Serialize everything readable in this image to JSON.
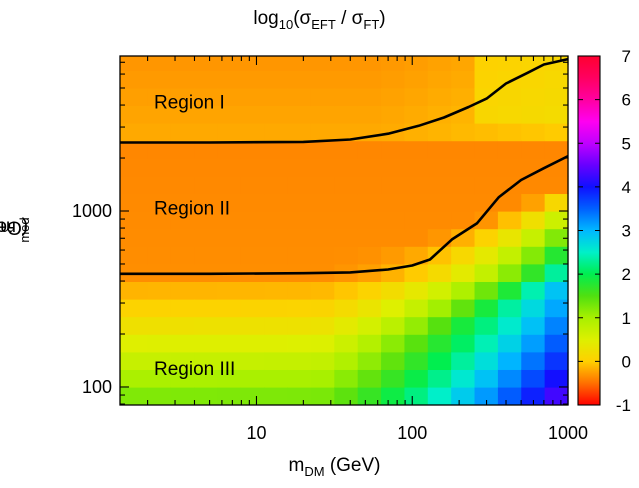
{
  "chart_data": {
    "type": "heatmap",
    "title": {
      "base": "log",
      "sub10": "10",
      "open": "(σ",
      "sub1": "EFT",
      "mid": " / σ",
      "sub2": "FT",
      "close": ")"
    },
    "xlabel": {
      "base": "m",
      "sub": "DM",
      "unit": " (GeV)"
    },
    "ylabel": {
      "base": "m",
      "sub": "med",
      "unit": "  (GeV)"
    },
    "x_scale": "log",
    "y_scale": "log",
    "xlim": [
      1.33,
      1000
    ],
    "ylim": [
      79,
      7600
    ],
    "x_ticks": [
      10,
      100,
      1000
    ],
    "x_tick_labels": [
      "10",
      "100",
      "1000"
    ],
    "y_ticks": [
      100,
      1000
    ],
    "y_tick_labels": [
      "100",
      "1000"
    ],
    "grid": false,
    "colorbar": {
      "range": [
        -1,
        7
      ],
      "ticks": [
        -1,
        0,
        1,
        2,
        3,
        4,
        5,
        6,
        7
      ],
      "tick_labels": [
        "-1",
        "0",
        "1",
        "2",
        "3",
        "4",
        "5",
        "6",
        "7"
      ],
      "stops": [
        {
          "v": -1,
          "color": "#ff0000"
        },
        {
          "v": -0.5,
          "color": "#ff7000"
        },
        {
          "v": 0,
          "color": "#ffd000"
        },
        {
          "v": 0.5,
          "color": "#ddf000"
        },
        {
          "v": 1,
          "color": "#a8f000"
        },
        {
          "v": 1.5,
          "color": "#50e010"
        },
        {
          "v": 2,
          "color": "#00ee50"
        },
        {
          "v": 2.5,
          "color": "#00f0c8"
        },
        {
          "v": 3,
          "color": "#00b8ff"
        },
        {
          "v": 3.5,
          "color": "#0060ff"
        },
        {
          "v": 4,
          "color": "#1010ff"
        },
        {
          "v": 4.5,
          "color": "#6800ff"
        },
        {
          "v": 5,
          "color": "#c000ff"
        },
        {
          "v": 5.5,
          "color": "#ff00f0"
        },
        {
          "v": 6,
          "color": "#ff00a0"
        },
        {
          "v": 6.5,
          "color": "#ff0060"
        },
        {
          "v": 7,
          "color": "#ff0030"
        }
      ]
    },
    "grid_x_edges_log10": [
      0.125,
      0.3,
      0.45,
      0.6,
      0.75,
      0.9,
      1.05,
      1.2,
      1.35,
      1.5,
      1.65,
      1.8,
      1.95,
      2.1,
      2.25,
      2.4,
      2.55,
      2.7,
      2.85,
      3.0
    ],
    "grid_y_edges_log10": [
      1.9,
      2.0,
      2.1,
      2.2,
      2.3,
      2.4,
      2.5,
      2.6,
      2.7,
      2.8,
      2.9,
      3.0,
      3.1,
      3.2,
      3.3,
      3.4,
      3.5,
      3.6,
      3.7,
      3.8,
      3.88
    ],
    "boundaries": [
      {
        "name": "",
        "points": [
          [
            1.33,
            2450
          ],
          [
            5,
            2450
          ],
          [
            20,
            2470
          ],
          [
            40,
            2550
          ],
          [
            70,
            2750
          ],
          [
            110,
            3050
          ],
          [
            160,
            3400
          ],
          [
            230,
            3900
          ],
          [
            300,
            4350
          ],
          [
            400,
            5300
          ],
          [
            550,
            6100
          ],
          [
            700,
            6800
          ],
          [
            1000,
            7300
          ]
        ]
      },
      {
        "name": "",
        "points": [
          [
            1.33,
            440
          ],
          [
            5,
            440
          ],
          [
            20,
            443
          ],
          [
            40,
            448
          ],
          [
            70,
            465
          ],
          [
            100,
            490
          ],
          [
            130,
            530
          ],
          [
            180,
            690
          ],
          [
            260,
            850
          ],
          [
            360,
            1200
          ],
          [
            500,
            1500
          ],
          [
            700,
            1750
          ],
          [
            1000,
            2050
          ]
        ]
      }
    ],
    "region_labels": [
      {
        "text": "Region I",
        "x": 2.2,
        "y": 4200
      },
      {
        "text": "Region II",
        "x": 2.2,
        "y": 1050
      },
      {
        "text": "Region III",
        "x": 2.2,
        "y": 128
      }
    ]
  }
}
